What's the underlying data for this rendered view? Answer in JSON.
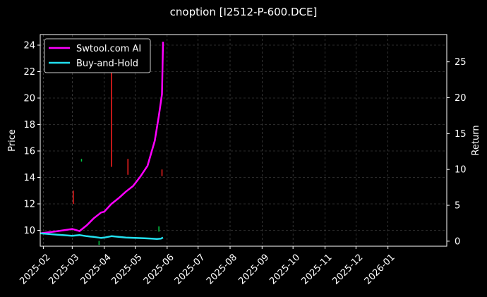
{
  "chart_data": {
    "type": "line",
    "title": "cnoption [I2512-P-600.DCE]",
    "xlabel": "",
    "ylabel": "Price",
    "y2label": "Return",
    "xlim": [
      "2025-01-29",
      "2026-02-27"
    ],
    "ylim": [
      8.8,
      24.8
    ],
    "y2lim": [
      -0.7,
      28.8
    ],
    "x_ticks": [
      "2025-02",
      "2025-03",
      "2025-04",
      "2025-05",
      "2025-06",
      "2025-07",
      "2025-08",
      "2025-09",
      "2025-10",
      "2025-11",
      "2025-12",
      "2026-01"
    ],
    "y_ticks": [
      10,
      12,
      14,
      16,
      18,
      20,
      22,
      24
    ],
    "y2_ticks": [
      0,
      5,
      10,
      15,
      20,
      25
    ],
    "grid": true,
    "legend_position": "top-left",
    "series": [
      {
        "name": "Swtool.com AI",
        "axis": "right",
        "color": "#ff00ff",
        "x": [
          "2025-01-29",
          "2025-02-15",
          "2025-03-01",
          "2025-03-08",
          "2025-03-15",
          "2025-03-22",
          "2025-03-29",
          "2025-04-01",
          "2025-04-08",
          "2025-04-15",
          "2025-04-22",
          "2025-04-29",
          "2025-05-06",
          "2025-05-13",
          "2025-05-20",
          "2025-05-24",
          "2025-05-27",
          "2025-05-28"
        ],
        "values": [
          1.1,
          1.4,
          1.7,
          1.4,
          2.2,
          3.2,
          4.0,
          4.1,
          5.2,
          6.0,
          6.9,
          7.7,
          9.0,
          10.5,
          14.0,
          17.5,
          20.5,
          27.8
        ]
      },
      {
        "name": "Buy-and-Hold",
        "axis": "right",
        "color": "#22e0f0",
        "x": [
          "2025-01-29",
          "2025-02-15",
          "2025-03-01",
          "2025-03-08",
          "2025-03-15",
          "2025-03-22",
          "2025-03-29",
          "2025-04-01",
          "2025-04-08",
          "2025-04-15",
          "2025-04-22",
          "2025-05-01",
          "2025-05-10",
          "2025-05-17",
          "2025-05-22",
          "2025-05-26",
          "2025-05-28"
        ],
        "values": [
          1.1,
          0.9,
          0.75,
          0.85,
          0.7,
          0.6,
          0.45,
          0.5,
          0.7,
          0.6,
          0.5,
          0.45,
          0.4,
          0.35,
          0.3,
          0.35,
          0.5
        ]
      }
    ],
    "candles": [
      {
        "date": "2025-03-02",
        "low": 12.0,
        "high": 13.0,
        "color": "#ff2020"
      },
      {
        "date": "2025-03-10",
        "low": 15.2,
        "high": 15.4,
        "color": "#00cc44"
      },
      {
        "date": "2025-03-27",
        "low": 8.9,
        "high": 9.2,
        "color": "#00cc44"
      },
      {
        "date": "2025-04-08",
        "low": 14.8,
        "high": 22.6,
        "color": "#ff2020"
      },
      {
        "date": "2025-04-24",
        "low": 14.2,
        "high": 15.4,
        "color": "#ff2020"
      },
      {
        "date": "2025-05-24",
        "low": 9.9,
        "high": 10.3,
        "color": "#00cc44"
      },
      {
        "date": "2025-05-27",
        "low": 14.1,
        "high": 14.6,
        "color": "#ff2020"
      }
    ]
  }
}
